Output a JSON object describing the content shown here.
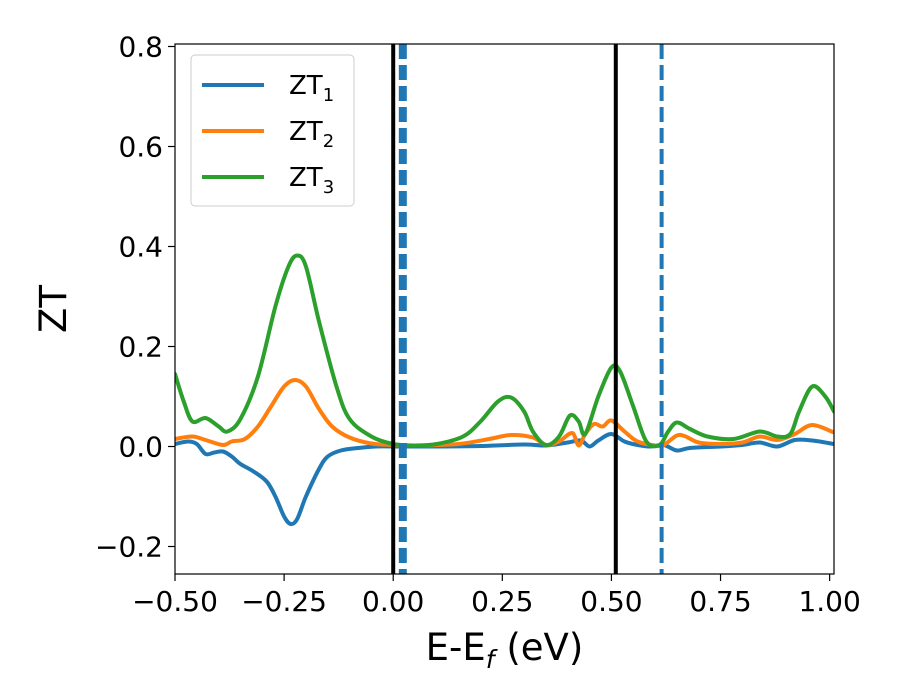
{
  "chart_data": {
    "type": "line",
    "xlabel": "E-E",
    "xlabel_sub": "f",
    "xlabel_unit": " (eV)",
    "ylabel": "ZT",
    "xlim": [
      -0.5,
      1.01
    ],
    "ylim": [
      -0.255,
      0.805
    ],
    "x_ticks": [
      -0.5,
      -0.25,
      0.0,
      0.25,
      0.5,
      0.75,
      1.0
    ],
    "x_tick_labels": [
      "−0.50",
      "−0.25",
      "0.00",
      "0.25",
      "0.50",
      "0.75",
      "1.00"
    ],
    "y_ticks": [
      -0.2,
      0.0,
      0.2,
      0.4,
      0.6,
      0.8
    ],
    "y_tick_labels": [
      "−0.2",
      "0.0",
      "0.2",
      "0.4",
      "0.6",
      "0.8"
    ],
    "legend_position": "upper-left",
    "series": [
      {
        "name": "ZT",
        "subscript": "1",
        "color": "#1f77b4",
        "points": [
          [
            -0.5,
            0.005
          ],
          [
            -0.47,
            0.01
          ],
          [
            -0.45,
            0.005
          ],
          [
            -0.43,
            -0.015
          ],
          [
            -0.41,
            -0.012
          ],
          [
            -0.39,
            -0.01
          ],
          [
            -0.37,
            -0.02
          ],
          [
            -0.35,
            -0.035
          ],
          [
            -0.32,
            -0.05
          ],
          [
            -0.29,
            -0.07
          ],
          [
            -0.27,
            -0.1
          ],
          [
            -0.25,
            -0.14
          ],
          [
            -0.235,
            -0.155
          ],
          [
            -0.22,
            -0.145
          ],
          [
            -0.2,
            -0.1
          ],
          [
            -0.17,
            -0.045
          ],
          [
            -0.15,
            -0.02
          ],
          [
            -0.12,
            -0.008
          ],
          [
            -0.08,
            -0.003
          ],
          [
            -0.04,
            0.0
          ],
          [
            0.0,
            0.0
          ],
          [
            0.1,
            0.0
          ],
          [
            0.2,
            0.001
          ],
          [
            0.3,
            0.004
          ],
          [
            0.35,
            0.002
          ],
          [
            0.4,
            0.008
          ],
          [
            0.43,
            0.012
          ],
          [
            0.45,
            0.0
          ],
          [
            0.47,
            0.012
          ],
          [
            0.5,
            0.025
          ],
          [
            0.53,
            0.01
          ],
          [
            0.56,
            0.003
          ],
          [
            0.59,
            0.0
          ],
          [
            0.62,
            0.003
          ],
          [
            0.65,
            -0.008
          ],
          [
            0.68,
            -0.003
          ],
          [
            0.75,
            0.0
          ],
          [
            0.8,
            0.003
          ],
          [
            0.84,
            0.008
          ],
          [
            0.88,
            0.0
          ],
          [
            0.92,
            0.013
          ],
          [
            0.96,
            0.012
          ],
          [
            1.01,
            0.005
          ]
        ]
      },
      {
        "name": "ZT",
        "subscript": "2",
        "color": "#ff7f0e",
        "points": [
          [
            -0.5,
            0.015
          ],
          [
            -0.46,
            0.02
          ],
          [
            -0.43,
            0.013
          ],
          [
            -0.39,
            0.003
          ],
          [
            -0.37,
            0.01
          ],
          [
            -0.34,
            0.015
          ],
          [
            -0.31,
            0.04
          ],
          [
            -0.28,
            0.08
          ],
          [
            -0.25,
            0.12
          ],
          [
            -0.225,
            0.133
          ],
          [
            -0.2,
            0.12
          ],
          [
            -0.17,
            0.075
          ],
          [
            -0.14,
            0.04
          ],
          [
            -0.1,
            0.018
          ],
          [
            -0.05,
            0.006
          ],
          [
            0.0,
            0.003
          ],
          [
            0.05,
            0.002
          ],
          [
            0.15,
            0.005
          ],
          [
            0.22,
            0.015
          ],
          [
            0.27,
            0.023
          ],
          [
            0.32,
            0.018
          ],
          [
            0.35,
            0.003
          ],
          [
            0.38,
            0.01
          ],
          [
            0.41,
            0.027
          ],
          [
            0.425,
            0.002
          ],
          [
            0.44,
            0.025
          ],
          [
            0.46,
            0.045
          ],
          [
            0.48,
            0.04
          ],
          [
            0.5,
            0.052
          ],
          [
            0.53,
            0.03
          ],
          [
            0.56,
            0.01
          ],
          [
            0.6,
            0.002
          ],
          [
            0.62,
            0.003
          ],
          [
            0.65,
            0.022
          ],
          [
            0.67,
            0.02
          ],
          [
            0.7,
            0.008
          ],
          [
            0.75,
            0.005
          ],
          [
            0.8,
            0.008
          ],
          [
            0.84,
            0.02
          ],
          [
            0.88,
            0.013
          ],
          [
            0.92,
            0.025
          ],
          [
            0.96,
            0.043
          ],
          [
            1.01,
            0.028
          ]
        ]
      },
      {
        "name": "ZT",
        "subscript": "3",
        "color": "#2ca02c",
        "points": [
          [
            -0.5,
            0.145
          ],
          [
            -0.48,
            0.09
          ],
          [
            -0.46,
            0.05
          ],
          [
            -0.43,
            0.057
          ],
          [
            -0.4,
            0.04
          ],
          [
            -0.38,
            0.03
          ],
          [
            -0.35,
            0.055
          ],
          [
            -0.31,
            0.14
          ],
          [
            -0.27,
            0.28
          ],
          [
            -0.24,
            0.36
          ],
          [
            -0.22,
            0.382
          ],
          [
            -0.2,
            0.36
          ],
          [
            -0.17,
            0.25
          ],
          [
            -0.13,
            0.12
          ],
          [
            -0.1,
            0.055
          ],
          [
            -0.05,
            0.02
          ],
          [
            0.0,
            0.005
          ],
          [
            0.05,
            0.002
          ],
          [
            0.1,
            0.005
          ],
          [
            0.16,
            0.02
          ],
          [
            0.2,
            0.05
          ],
          [
            0.24,
            0.09
          ],
          [
            0.27,
            0.098
          ],
          [
            0.3,
            0.07
          ],
          [
            0.32,
            0.03
          ],
          [
            0.35,
            0.003
          ],
          [
            0.38,
            0.02
          ],
          [
            0.405,
            0.062
          ],
          [
            0.425,
            0.05
          ],
          [
            0.44,
            0.025
          ],
          [
            0.47,
            0.1
          ],
          [
            0.5,
            0.158
          ],
          [
            0.52,
            0.15
          ],
          [
            0.55,
            0.08
          ],
          [
            0.58,
            0.01
          ],
          [
            0.61,
            0.003
          ],
          [
            0.63,
            0.03
          ],
          [
            0.65,
            0.048
          ],
          [
            0.68,
            0.035
          ],
          [
            0.72,
            0.02
          ],
          [
            0.78,
            0.015
          ],
          [
            0.84,
            0.03
          ],
          [
            0.88,
            0.02
          ],
          [
            0.91,
            0.025
          ],
          [
            0.93,
            0.07
          ],
          [
            0.96,
            0.12
          ],
          [
            0.99,
            0.1
          ],
          [
            1.01,
            0.07
          ]
        ]
      }
    ],
    "vertical_lines": [
      {
        "x": 0.0,
        "color": "#000000",
        "style": "solid",
        "width": 4
      },
      {
        "x": 0.022,
        "color": "#1f77b4",
        "style": "dashed",
        "width": 8
      },
      {
        "x": 0.51,
        "color": "#000000",
        "style": "solid",
        "width": 4
      },
      {
        "x": 0.615,
        "color": "#1f77b4",
        "style": "dashed",
        "width": 4
      }
    ]
  }
}
